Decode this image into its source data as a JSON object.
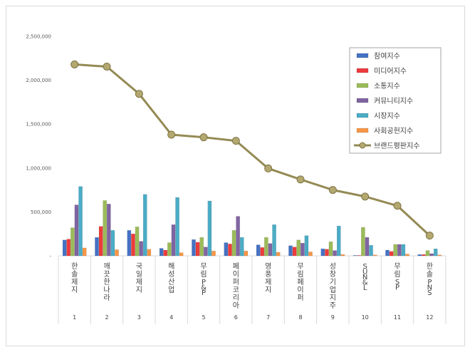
{
  "chart_data": {
    "type": "bar",
    "title": "",
    "xlabel": "",
    "ylabel": "",
    "ylim": [
      0,
      2500000
    ],
    "yticks": [
      0,
      500000,
      1000000,
      1500000,
      2000000,
      2500000
    ],
    "ytick_labels": [
      "-",
      "500,000",
      "1,000,000",
      "1,500,000",
      "2,000,000",
      "2,500,000"
    ],
    "grid": false,
    "legend_position": "top-right",
    "categories": [
      "한솔제지",
      "깨끗한나라",
      "국일제지",
      "해성산업",
      "무림P&P",
      "페이퍼코리아",
      "영풍제지",
      "무림페이퍼",
      "성창기업지주",
      "SUN&L",
      "무림SP",
      "한솔PNS"
    ],
    "ranks": [
      "1",
      "2",
      "3",
      "4",
      "5",
      "6",
      "7",
      "8",
      "9",
      "10",
      "11",
      "12"
    ],
    "series": [
      {
        "name": "참여지수",
        "kind": "bar",
        "color": "#4472c4",
        "values": [
          180000,
          210000,
          290000,
          85000,
          185000,
          150000,
          125000,
          115000,
          80000,
          5000,
          65000,
          15000
        ]
      },
      {
        "name": "미디어지수",
        "kind": "bar",
        "color": "#ed3b3b",
        "values": [
          190000,
          335000,
          250000,
          65000,
          155000,
          135000,
          95000,
          100000,
          75000,
          5000,
          50000,
          15000
        ]
      },
      {
        "name": "소통지수",
        "kind": "bar",
        "color": "#9bbb59",
        "values": [
          320000,
          630000,
          330000,
          150000,
          210000,
          290000,
          210000,
          180000,
          160000,
          325000,
          130000,
          60000
        ]
      },
      {
        "name": "커뮤니티지수",
        "kind": "bar",
        "color": "#8064a2",
        "values": [
          580000,
          590000,
          165000,
          355000,
          100000,
          450000,
          140000,
          145000,
          60000,
          210000,
          130000,
          25000
        ]
      },
      {
        "name": "시장지수",
        "kind": "bar",
        "color": "#4bacc6",
        "values": [
          790000,
          290000,
          700000,
          665000,
          625000,
          210000,
          355000,
          230000,
          340000,
          120000,
          130000,
          80000
        ]
      },
      {
        "name": "사회공헌지수",
        "kind": "bar",
        "color": "#f79646",
        "values": [
          90000,
          70000,
          75000,
          35000,
          55000,
          55000,
          40000,
          45000,
          15000,
          10000,
          20000,
          10000
        ]
      },
      {
        "name": "브랜드평판지수",
        "kind": "line",
        "color": "#948a54",
        "values": [
          2180000,
          2155000,
          1845000,
          1380000,
          1350000,
          1310000,
          995000,
          870000,
          750000,
          675000,
          570000,
          230000
        ]
      }
    ]
  }
}
